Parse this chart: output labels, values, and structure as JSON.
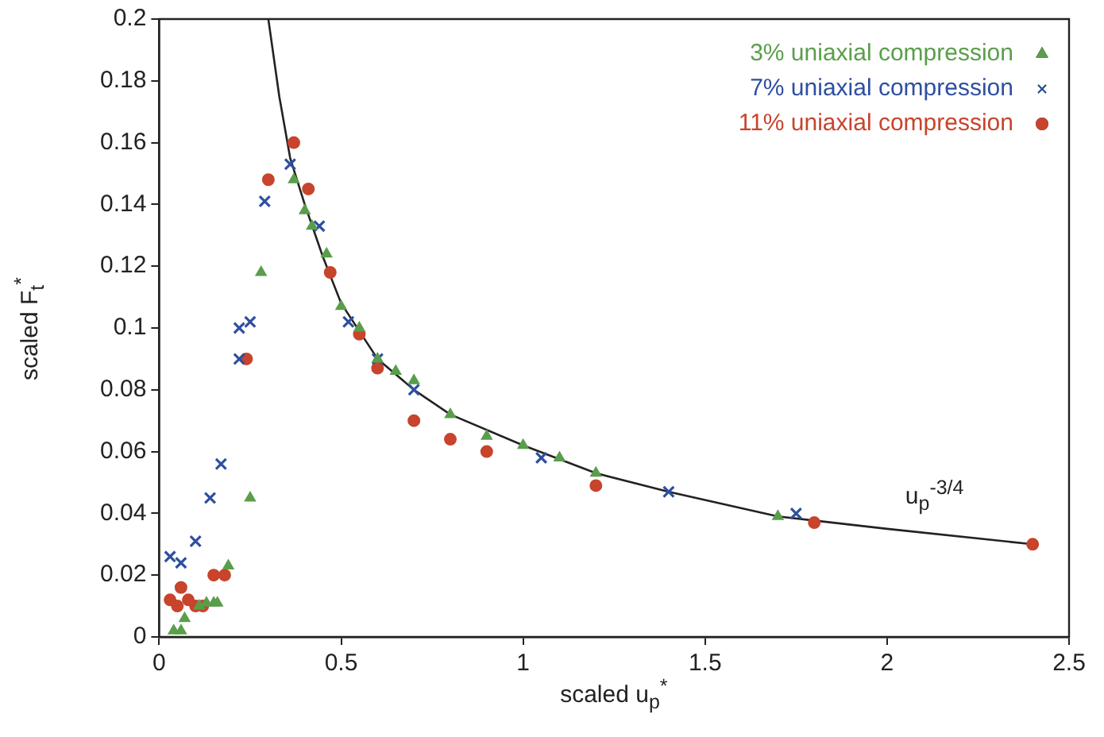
{
  "chart_data": {
    "type": "scatter",
    "xlabel": "scaled u$_{p}$$^{*}$",
    "ylabel": "scaled F$_{t}$$^{*}$",
    "xlim": [
      0,
      2.5
    ],
    "xticks": [
      0,
      0.5,
      1,
      1.5,
      2,
      2.5
    ],
    "ylim": [
      0,
      0.2
    ],
    "yticks": [
      0,
      0.02,
      0.04,
      0.06,
      0.08,
      0.1,
      0.12,
      0.14,
      0.16,
      0.18,
      0.2
    ],
    "grid": false,
    "legend": "top right",
    "annotations": [
      "u$_{p}$$^{-3/4}$"
    ],
    "series": [
      {
        "name": "3% uniaxial compression",
        "color": "#5a9e4b",
        "marker": "triangle",
        "x": [
          0.04,
          0.06,
          0.07,
          0.11,
          0.13,
          0.15,
          0.16,
          0.19,
          0.25,
          0.28,
          0.37,
          0.4,
          0.42,
          0.46,
          0.5,
          0.55,
          0.6,
          0.65,
          0.7,
          0.8,
          0.9,
          1.0,
          1.1,
          1.2,
          1.7
        ],
        "values": [
          0.002,
          0.002,
          0.006,
          0.01,
          0.011,
          0.011,
          0.011,
          0.023,
          0.045,
          0.118,
          0.148,
          0.138,
          0.133,
          0.124,
          0.107,
          0.1,
          0.09,
          0.086,
          0.083,
          0.072,
          0.065,
          0.062,
          0.058,
          0.053,
          0.039
        ]
      },
      {
        "name": "7% uniaxial compression",
        "color": "#2e4fa0",
        "marker": "cross",
        "x": [
          0.03,
          0.06,
          0.1,
          0.14,
          0.17,
          0.22,
          0.25,
          0.22,
          0.29,
          0.36,
          0.44,
          0.52,
          0.6,
          0.7,
          1.05,
          1.4,
          1.75
        ],
        "values": [
          0.026,
          0.024,
          0.031,
          0.045,
          0.056,
          0.1,
          0.102,
          0.09,
          0.141,
          0.153,
          0.133,
          0.102,
          0.09,
          0.08,
          0.058,
          0.047,
          0.04
        ]
      },
      {
        "name": "11% uniaxial compression",
        "color": "#c8442c",
        "marker": "circle",
        "x": [
          0.03,
          0.05,
          0.06,
          0.08,
          0.1,
          0.12,
          0.15,
          0.18,
          0.24,
          0.3,
          0.37,
          0.41,
          0.47,
          0.55,
          0.6,
          0.7,
          0.8,
          0.9,
          1.2,
          1.8,
          2.4
        ],
        "values": [
          0.012,
          0.01,
          0.016,
          0.012,
          0.01,
          0.01,
          0.02,
          0.02,
          0.09,
          0.148,
          0.16,
          0.145,
          0.118,
          0.098,
          0.087,
          0.07,
          0.064,
          0.06,
          0.049,
          0.037,
          0.03
        ]
      },
      {
        "type": "line",
        "color": "#222222",
        "marker": "none",
        "x": [
          0.3,
          0.33,
          0.36,
          0.4,
          0.45,
          0.5,
          0.6,
          0.7,
          0.8,
          1.0,
          1.2,
          1.4,
          1.7,
          2.0,
          2.4
        ],
        "values": [
          0.2,
          0.175,
          0.155,
          0.14,
          0.123,
          0.108,
          0.09,
          0.08,
          0.072,
          0.062,
          0.053,
          0.047,
          0.039,
          0.035,
          0.03
        ]
      }
    ]
  }
}
